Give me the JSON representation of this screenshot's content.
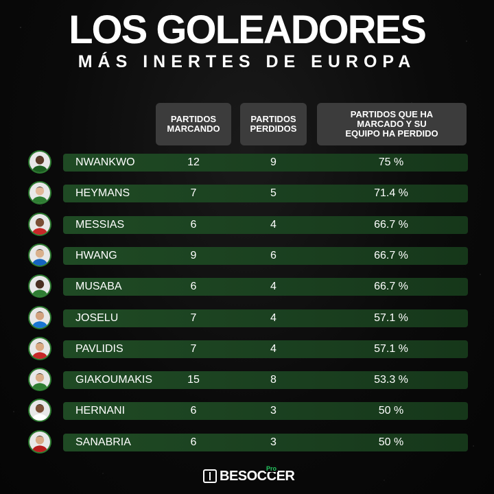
{
  "title": "LOS GOLEADORES",
  "subtitle": "MÁS INERTES DE EUROPA",
  "headers": {
    "col1": [
      "PARTIDOS",
      "MARCANDO"
    ],
    "col2": [
      "PARTIDOS",
      "PERDIDOS"
    ],
    "col3": [
      "PARTIDOS QUE HA",
      "MARCADO Y SU",
      "EQUIPO HA PERDIDO"
    ]
  },
  "players": [
    {
      "name": "NWANKWO",
      "scored": "12",
      "lost": "9",
      "pct": "75 %",
      "icon": "player-avatar-icon",
      "shirt": "#1b5e20",
      "skin": "#5a3b28"
    },
    {
      "name": "HEYMANS",
      "scored": "7",
      "lost": "5",
      "pct": "71.4 %",
      "icon": "player-avatar-icon",
      "shirt": "#2e7d32",
      "skin": "#e1b899"
    },
    {
      "name": "MESSIAS",
      "scored": "6",
      "lost": "4",
      "pct": "66.7 %",
      "icon": "player-avatar-icon",
      "shirt": "#c62828",
      "skin": "#7a4f36"
    },
    {
      "name": "HWANG",
      "scored": "9",
      "lost": "6",
      "pct": "66.7 %",
      "icon": "player-avatar-icon",
      "shirt": "#1565c0",
      "skin": "#d9b08c"
    },
    {
      "name": "MUSABA",
      "scored": "6",
      "lost": "4",
      "pct": "66.7 %",
      "icon": "player-avatar-icon",
      "shirt": "#2e7d32",
      "skin": "#4a2f20"
    },
    {
      "name": "JOSELU",
      "scored": "7",
      "lost": "4",
      "pct": "57.1 %",
      "icon": "player-avatar-icon",
      "shirt": "#1976d2",
      "skin": "#d2a27f"
    },
    {
      "name": "PAVLIDIS",
      "scored": "7",
      "lost": "4",
      "pct": "57.1 %",
      "icon": "player-avatar-icon",
      "shirt": "#c62828",
      "skin": "#d9a982"
    },
    {
      "name": "GIAKOUMAKIS",
      "scored": "15",
      "lost": "8",
      "pct": "53.3 %",
      "icon": "player-avatar-icon",
      "shirt": "#2e7d32",
      "skin": "#d8ad88"
    },
    {
      "name": "HERNANI",
      "scored": "6",
      "lost": "3",
      "pct": "50 %",
      "icon": "player-avatar-icon",
      "shirt": "#ffffff",
      "skin": "#7c5238"
    },
    {
      "name": "SANABRIA",
      "scored": "6",
      "lost": "3",
      "pct": "50 %",
      "icon": "player-avatar-icon",
      "shirt": "#b71c1c",
      "skin": "#d7a985"
    }
  ],
  "logo": {
    "text": "BESOCCER",
    "badge": "Pro",
    "icon": "besoccer-logo-icon"
  },
  "colors": {
    "row_bar": "#1f4a24",
    "header_bg": "#3c3c3c",
    "avatar_ring": "#2a7a2e",
    "accent": "#22c55e"
  }
}
